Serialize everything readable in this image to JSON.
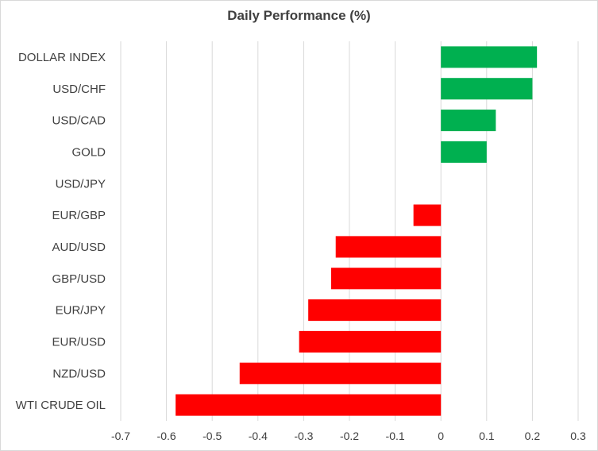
{
  "chart_data": {
    "type": "bar",
    "orientation": "horizontal",
    "title": "Daily Performance (%)",
    "xlabel": "",
    "ylabel": "",
    "categories": [
      "DOLLAR INDEX",
      "USD/CHF",
      "USD/CAD",
      "GOLD",
      "USD/JPY",
      "EUR/GBP",
      "AUD/USD",
      "GBP/USD",
      "EUR/JPY",
      "EUR/USD",
      "NZD/USD",
      "WTI CRUDE OIL"
    ],
    "values": [
      0.21,
      0.2,
      0.12,
      0.1,
      0,
      -0.06,
      -0.23,
      -0.24,
      -0.29,
      -0.31,
      -0.44,
      -0.58
    ],
    "xlim": [
      -0.7,
      0.3
    ],
    "xticks": [
      -0.7,
      -0.6,
      -0.5,
      -0.4,
      -0.3,
      -0.2,
      -0.1,
      0,
      0.1,
      0.2,
      0.3
    ],
    "grid": "vertical",
    "legend": "none",
    "colors": {
      "positive": "#00b050",
      "negative": "#ff0000",
      "grid": "#d9d9d9",
      "text": "#404040"
    }
  }
}
